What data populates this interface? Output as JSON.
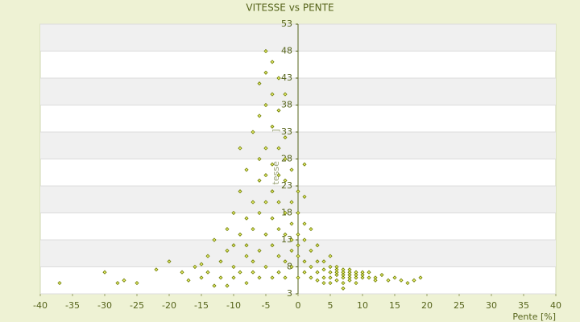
{
  "chart_data": {
    "type": "scatter",
    "title": "VITESSE vs PENTE",
    "x_label": "Pente [%]",
    "y_label": "Vitesse [km/h]",
    "color": "#6b7a00",
    "grid": true,
    "xlim": [
      -40,
      40
    ],
    "xticks": [
      -40,
      -35,
      -30,
      -25,
      -20,
      -15,
      -10,
      -5,
      0,
      5,
      10,
      15,
      20,
      25,
      30,
      35,
      40
    ],
    "ylim": [
      3,
      53
    ],
    "yticks": [
      3,
      8,
      13,
      18,
      23,
      28,
      33,
      38,
      43,
      48,
      53
    ],
    "x": [
      -37,
      -30,
      -28,
      -27,
      -25,
      -22,
      -20,
      -18,
      -17,
      -16,
      -15,
      -15,
      -14,
      -14,
      -13,
      -13,
      -12,
      -12,
      -11,
      -11,
      -11,
      -10,
      -10,
      -10,
      -10,
      -9,
      -9,
      -9,
      -9,
      -8,
      -8,
      -8,
      -8,
      -8,
      -7,
      -7,
      -7,
      -7,
      -7,
      -6,
      -6,
      -6,
      -6,
      -6,
      -6,
      -6,
      -5,
      -5,
      -5,
      -5,
      -5,
      -5,
      -5,
      -5,
      -4,
      -4,
      -4,
      -4,
      -4,
      -4,
      -4,
      -4,
      -3,
      -3,
      -3,
      -3,
      -3,
      -3,
      -3,
      -3,
      -2,
      -2,
      -2,
      -2,
      -2,
      -2,
      -2,
      -2,
      -1,
      -1,
      -1,
      -1,
      -1,
      -1,
      0,
      0,
      0,
      0,
      0,
      0,
      1,
      1,
      1,
      1,
      1,
      1,
      2,
      2,
      2,
      2,
      3,
      3,
      3,
      3,
      4,
      4,
      4,
      4,
      5,
      5,
      5,
      5,
      5,
      6,
      6,
      6,
      6,
      6,
      7,
      7,
      7,
      7,
      7,
      7,
      8,
      8,
      8,
      8,
      8,
      9,
      9,
      9,
      9,
      10,
      10,
      10,
      11,
      11,
      12,
      12,
      13,
      14,
      15,
      16,
      17,
      18,
      19
    ],
    "values": [
      5,
      7,
      5,
      5.5,
      5,
      7.5,
      9,
      7,
      5.5,
      8,
      8.5,
      6,
      7,
      10,
      4.5,
      13,
      9,
      6,
      11,
      15,
      4.5,
      8,
      12,
      18,
      6,
      7,
      14,
      22,
      30,
      10,
      5,
      17,
      26,
      12,
      9,
      15,
      20,
      33,
      7,
      11,
      18,
      24,
      36,
      42,
      28,
      6,
      14,
      20,
      30,
      38,
      44,
      48,
      8,
      25,
      12,
      17,
      22,
      34,
      40,
      46,
      27,
      6,
      10,
      15,
      20,
      30,
      37,
      43,
      25,
      7,
      9,
      14,
      18,
      24,
      32,
      28,
      40,
      6,
      11,
      16,
      20,
      26,
      13,
      8,
      10,
      14,
      18,
      22,
      6,
      12,
      9,
      13,
      16,
      21,
      27,
      7,
      8,
      11,
      15,
      6,
      7,
      9,
      12,
      5.5,
      6,
      7.5,
      9,
      5,
      6,
      7,
      8,
      10,
      5,
      6.5,
      7,
      7.5,
      5.5,
      8,
      6,
      6.5,
      7,
      7.5,
      5,
      4,
      6,
      6.5,
      7,
      5.5,
      7.5,
      6,
      7,
      6.5,
      5,
      6,
      7,
      6.5,
      6,
      7,
      6,
      5.5,
      6.5,
      5.5,
      6,
      5.5,
      5,
      5.5,
      6
    ]
  }
}
